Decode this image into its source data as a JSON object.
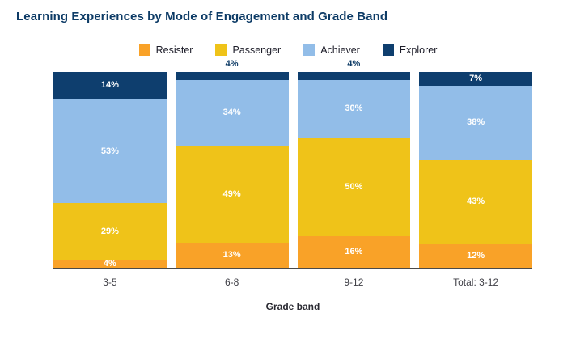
{
  "title": "Learning Experiences by Mode of Engagement and Grade Band",
  "colors": {
    "title_text": "#0d3b66",
    "resister": "#f9a228",
    "passenger": "#efc319",
    "achiever": "#92bde8",
    "explorer": "#0e3e6e",
    "axis_line": "#4a4a4a",
    "inside_label": "#ffffff",
    "outside_label": "#0d3b66"
  },
  "legend": {
    "items": [
      "Resister",
      "Passenger",
      "Achiever",
      "Explorer"
    ]
  },
  "chart_data": {
    "type": "bar",
    "stacked": true,
    "title": "Learning Experiences by Mode of Engagement and Grade Band",
    "xlabel": "Grade band",
    "ylabel": "",
    "ylim": [
      0,
      100
    ],
    "grid": false,
    "legend_position": "top-center",
    "value_format": "percent",
    "categories": [
      "3-5",
      "6-8",
      "9-12",
      "Total: 3-12"
    ],
    "series": [
      {
        "name": "Resister",
        "color": "#f9a228",
        "values": [
          4,
          13,
          16,
          12
        ]
      },
      {
        "name": "Passenger",
        "color": "#efc319",
        "values": [
          29,
          49,
          50,
          43
        ]
      },
      {
        "name": "Achiever",
        "color": "#92bde8",
        "values": [
          53,
          34,
          30,
          38
        ]
      },
      {
        "name": "Explorer",
        "color": "#0e3e6e",
        "values": [
          14,
          4,
          4,
          7
        ]
      }
    ]
  }
}
